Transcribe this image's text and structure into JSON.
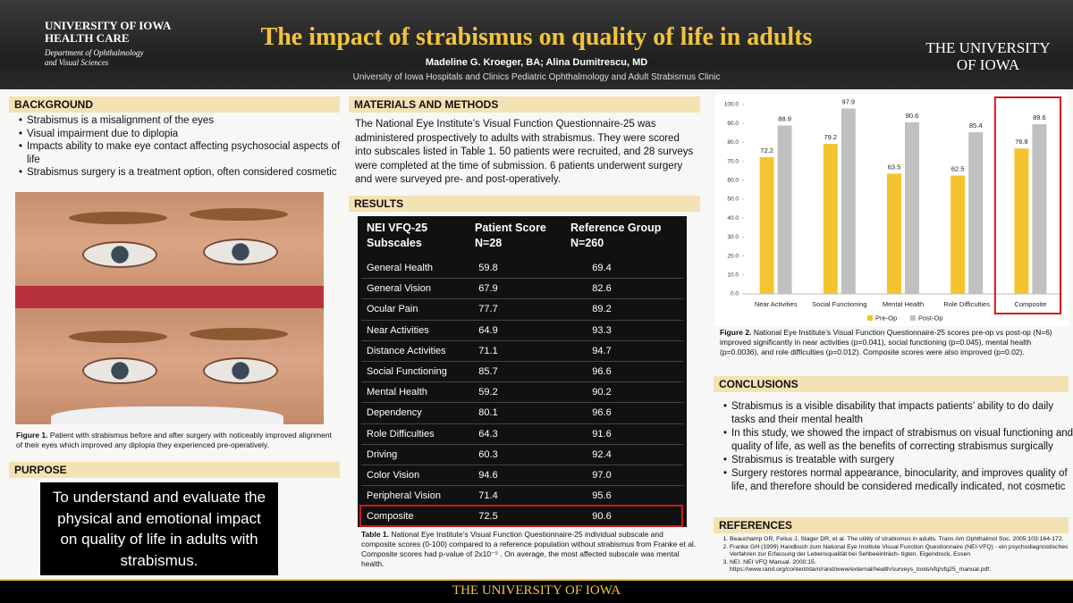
{
  "header": {
    "title": "The impact of strabismus on quality of life in adults",
    "authors": "Madeline G. Kroeger, BA; Alina Dumitrescu, MD",
    "affiliation": "University of Iowa Hospitals and Clinics Pediatric Ophthalmology and Adult Strabismus Clinic",
    "left_logo": {
      "line1": "UNIVERSITY OF IOWA",
      "line2": "HEALTH CARE",
      "line3": "Department of Ophthalmology",
      "line4": "and Visual Sciences"
    },
    "right_logo": {
      "line1": "THE UNIVERSITY",
      "line2": "OF IOWA"
    }
  },
  "background": {
    "heading": "BACKGROUND",
    "items": [
      "Strabismus is a misalignment of the eyes",
      "Visual impairment due to diplopia",
      "Impacts ability to make eye contact affecting psychosocial aspects of life",
      "Strabismus surgery is a treatment option, often considered cosmetic"
    ],
    "figure": {
      "label": "Figure 1.",
      "text": "Patient with strabismus before and after surgery with noticeably improved alignment of their eyes which improved any diplopia they experienced pre-operatively."
    }
  },
  "purpose": {
    "heading": "PURPOSE",
    "text": "To understand and evaluate the physical and emotional impact on quality of life in adults with strabismus."
  },
  "methods": {
    "heading": "MATERIALS AND METHODS",
    "text": "The National Eye Institute’s Visual Function Questionnaire-25 was administered prospectively to adults with strabismus. They were scored into subscales listed in Table 1. 50 patients were recruited, and 28 surveys were completed at the time of submission. 6 patients underwent surgery and were surveyed pre- and post-operatively."
  },
  "results": {
    "heading": "RESULTS",
    "table": {
      "header": [
        [
          "NEI VFQ-25",
          "Subscales"
        ],
        [
          "Patient Score",
          "N=28"
        ],
        [
          "Reference Group",
          "N=260"
        ]
      ],
      "rows": [
        [
          "General Health",
          "59.8",
          "69.4"
        ],
        [
          "General Vision",
          "67.9",
          "82.6"
        ],
        [
          "Ocular Pain",
          "77.7",
          "89.2"
        ],
        [
          "Near Activities",
          "64.9",
          "93.3"
        ],
        [
          "Distance Activities",
          "71.1",
          "94.7"
        ],
        [
          "Social Functioning",
          "85.7",
          "96.6"
        ],
        [
          "Mental Health",
          "59.2",
          "90.2"
        ],
        [
          "Dependency",
          "80.1",
          "96.6"
        ],
        [
          "Role Difficulties",
          "64.3",
          "91.6"
        ],
        [
          "Driving",
          "60.3",
          "92.4"
        ],
        [
          "Color Vision",
          "94.6",
          "97.0"
        ],
        [
          "Peripheral Vision",
          "71.4",
          "95.6"
        ],
        [
          "Composite",
          "72.5",
          "90.6"
        ]
      ]
    },
    "caption": {
      "label": "Table 1.",
      "text": "National Eye Institute’s Visual Function Questionnaire-25 individual subscale and composite scores (0-100) compared to a reference population without strabismus from Franke et al. Composite scores had p-value of 2x10⁻⁵ . On average, the most affected subscale was mental health."
    }
  },
  "chart_data": {
    "type": "bar",
    "categories": [
      "Near Activities",
      "Social Functioning",
      "Mental Health",
      "Role Difficulties",
      "Composite"
    ],
    "series": [
      {
        "name": "Pre-Op",
        "color": "#f4c430",
        "values": [
          72.2,
          79.2,
          63.5,
          62.5,
          76.8
        ]
      },
      {
        "name": "Post-Op",
        "color": "#c0c0c0",
        "values": [
          88.9,
          97.9,
          90.6,
          85.4,
          89.6
        ]
      }
    ],
    "ylim": [
      0,
      100
    ],
    "yticks": [
      {
        "value": 0,
        "label": "0.0"
      },
      {
        "value": 10,
        "label": "10.0"
      },
      {
        "value": 20,
        "label": "20.0"
      },
      {
        "value": 30,
        "label": "30.0"
      },
      {
        "value": 40,
        "label": "40.0"
      },
      {
        "value": 50,
        "label": "50.0"
      },
      {
        "value": 60,
        "label": "60.0"
      },
      {
        "value": 70,
        "label": "70.0"
      },
      {
        "value": 80,
        "label": "80.0"
      },
      {
        "value": 90,
        "label": "90.0"
      },
      {
        "value": 100,
        "label": "100.0"
      }
    ],
    "grid": false,
    "legend": "bottom"
  },
  "figure2": {
    "label": "Figure 2.",
    "text": "National Eye Institute’s Visual Function Questionnaire-25 scores pre-op vs post-op (N=6) improved significantly in near activities (p=0.041), social functioning (p=0.045), mental health (p=0.0036), and role difficulties (p=0.012). Composite scores were also improved (p=0.02)."
  },
  "conclusions": {
    "heading": "CONCLUSIONS",
    "items": [
      "Strabismus is a visible disability that impacts patients’ ability to do daily tasks and their mental health",
      "In this study, we showed the impact of strabismus on visual functioning and quality of life, as well as the benefits of correcting strabismus surgically",
      "Strabismus is treatable with surgery",
      "Surgery restores normal appearance, binocularity, and improves quality of life, and therefore should be considered medically indicated, not cosmetic"
    ]
  },
  "references": {
    "heading": "REFERENCES",
    "items": [
      "Beauchamp GR, Felius J, Stager DR, et al. The utility of strabismus in adults. Trans Am Ophthalmol Soc. 2005;103:164-172.",
      "Franke GH (1999) Handbuch zum National Eye Institute Visual Function Questionnaire (NEI-VFQ) - ein psychodiagnostisches Verfahren zur Erfassung der Lebensqualität bei Sehbeeinträch- tigten. Eigendruck, Essen",
      "NEI. NEI VFQ Manual. 2000:15. https://www.rand.org/content/dam/rand/www/external/health/surveys_tools/vfq/vfq25_manual.pdf."
    ]
  },
  "footer": {
    "text": "THE UNIVERSITY OF IOWA"
  }
}
